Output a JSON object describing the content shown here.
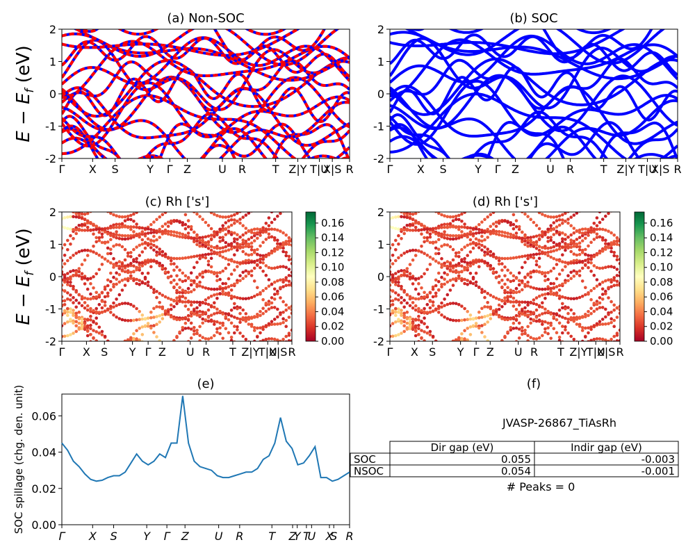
{
  "colors": {
    "nonsoc_a": "#ff0000",
    "nonsoc_b": "#0000ff",
    "soc": "#0000ff",
    "spillage_line": "#1f77b4",
    "colormap": [
      "#a50026",
      "#d73027",
      "#f46d43",
      "#fdae61",
      "#fee08b",
      "#ffffbf",
      "#d9ef8b",
      "#a6d96a",
      "#66bd63",
      "#1a9850",
      "#006837"
    ]
  },
  "ylabel_band": "E − E_f (eV)",
  "kpath_labels": [
    "Γ",
    "X",
    "S",
    "Y",
    "Γ",
    "Z",
    "U",
    "R",
    "T",
    "Z|Y",
    "T|U",
    "X|S",
    "R"
  ],
  "kpath_labels_spill": [
    "Γ",
    "X",
    "S",
    "Y",
    "Γ",
    "Z",
    "U",
    "R",
    "T",
    "Z",
    "Y",
    "T",
    "U",
    "X",
    "S",
    "R"
  ],
  "chart_data": [
    {
      "type": "line",
      "title": "(a) Non-SOC",
      "ylabel": "E − E_f (eV)",
      "ylim": [
        -2,
        2
      ],
      "yticks": [
        -2,
        -1,
        0,
        1,
        2
      ],
      "style": "bands, red/blue dashed (spin up / spin down overlapping)"
    },
    {
      "type": "line",
      "title": "(b) SOC",
      "ylim": [
        -2,
        2
      ],
      "yticks": [
        -2,
        -1,
        0,
        1,
        2
      ],
      "style": "bands, solid blue"
    },
    {
      "type": "scatter",
      "title": "(c)  Rh ['s']",
      "ylabel": "E − E_f (eV)",
      "ylim": [
        -2,
        2
      ],
      "yticks": [
        -2,
        -1,
        0,
        1,
        2
      ],
      "colorbar_ticks": [
        "0.00",
        "0.02",
        "0.04",
        "0.06",
        "0.08",
        "0.10",
        "0.12",
        "0.14",
        "0.16"
      ],
      "colorbar_range": [
        0,
        0.175
      ]
    },
    {
      "type": "scatter",
      "title": "(d) Rh ['s']",
      "ylim": [
        -2,
        2
      ],
      "yticks": [
        -2,
        -1,
        0,
        1,
        2
      ],
      "colorbar_ticks": [
        "0.00",
        "0.02",
        "0.04",
        "0.06",
        "0.08",
        "0.10",
        "0.12",
        "0.14",
        "0.16"
      ],
      "colorbar_range": [
        0,
        0.175
      ]
    },
    {
      "type": "line",
      "title": "(e)",
      "ylabel": "SOC spillage (chg. den. unit)",
      "ylim": [
        0,
        0.072
      ],
      "yticks": [
        "0.00",
        "0.02",
        "0.04",
        "0.06"
      ],
      "series": [
        {
          "x": [
            0,
            2,
            4,
            6,
            8,
            10,
            12,
            14,
            16,
            18,
            20,
            22,
            24,
            26,
            28,
            30,
            32,
            34,
            36,
            38,
            40,
            42,
            44,
            46,
            48,
            50,
            52,
            54,
            56,
            58,
            60,
            62,
            64,
            66,
            68,
            70,
            72,
            74,
            76,
            78,
            80,
            82,
            84,
            86,
            88,
            90,
            92,
            94,
            96,
            98,
            100
          ],
          "values": [
            0.045,
            0.041,
            0.035,
            0.032,
            0.028,
            0.025,
            0.024,
            0.0245,
            0.026,
            0.027,
            0.027,
            0.029,
            0.034,
            0.039,
            0.035,
            0.033,
            0.035,
            0.039,
            0.037,
            0.045,
            0.045,
            0.071,
            0.045,
            0.035,
            0.032,
            0.031,
            0.03,
            0.027,
            0.026,
            0.026,
            0.027,
            0.028,
            0.029,
            0.029,
            0.031,
            0.036,
            0.038,
            0.045,
            0.059,
            0.046,
            0.042,
            0.033,
            0.034,
            0.038,
            0.043,
            0.026,
            0.026,
            0.024,
            0.025,
            0.027,
            0.029
          ]
        }
      ]
    },
    {
      "type": "table",
      "title": "(f)",
      "subtitle": "JVASP-26867_TiAsRh",
      "columns": [
        "",
        "Dir gap (eV)",
        "Indir gap (eV)"
      ],
      "rows": [
        [
          "SOC",
          "0.055",
          "-0.003"
        ],
        [
          "NSOC",
          "0.054",
          "-0.001"
        ]
      ],
      "footer": "# Peaks = 0"
    }
  ]
}
